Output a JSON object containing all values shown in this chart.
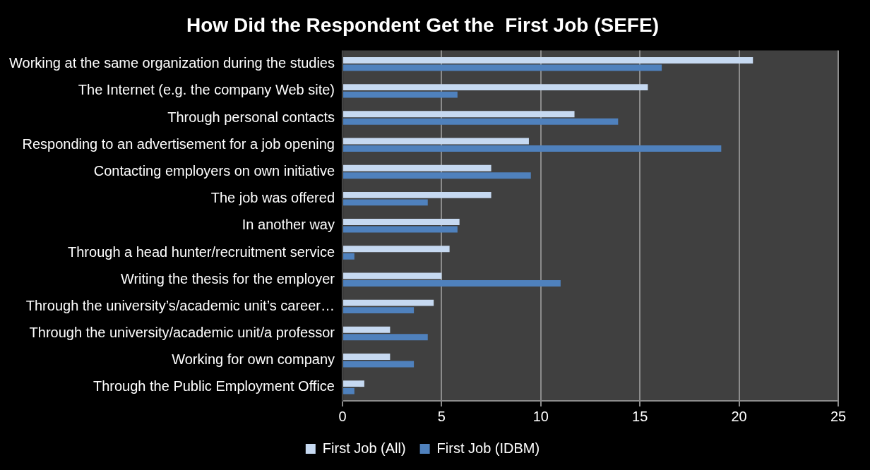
{
  "chart_data": {
    "type": "bar",
    "orientation": "horizontal",
    "title": "How Did the Respondent Get the  First Job (SEFE)",
    "categories": [
      "Working at the same organization during the studies",
      "The Internet (e.g. the company Web site)",
      "Through personal contacts",
      "Responding to an advertisement for a job opening",
      "Contacting employers on own initiative",
      "The job was offered",
      "In another way",
      "Through a head hunter/recruitment service",
      "Writing the thesis for the employer",
      "Through the university’s/academic unit’s career…",
      "Through the university/academic unit/a professor",
      "Working for own company",
      "Through the Public Employment Office"
    ],
    "series": [
      {
        "name": "First Job (All)",
        "color": "#c6d9f1",
        "values": [
          20.7,
          15.4,
          11.7,
          9.4,
          7.5,
          7.5,
          5.9,
          5.4,
          5.0,
          4.6,
          2.4,
          2.4,
          1.1
        ]
      },
      {
        "name": "First Job (IDBM)",
        "color": "#4f81bd",
        "values": [
          16.1,
          5.8,
          13.9,
          19.1,
          9.5,
          4.3,
          5.8,
          0.6,
          11.0,
          3.6,
          4.3,
          3.6,
          0.6
        ]
      }
    ],
    "xlim": [
      0,
      25
    ],
    "xticks": [
      0,
      5,
      10,
      15,
      20,
      25
    ],
    "grid": "x",
    "legend": "bottom"
  }
}
